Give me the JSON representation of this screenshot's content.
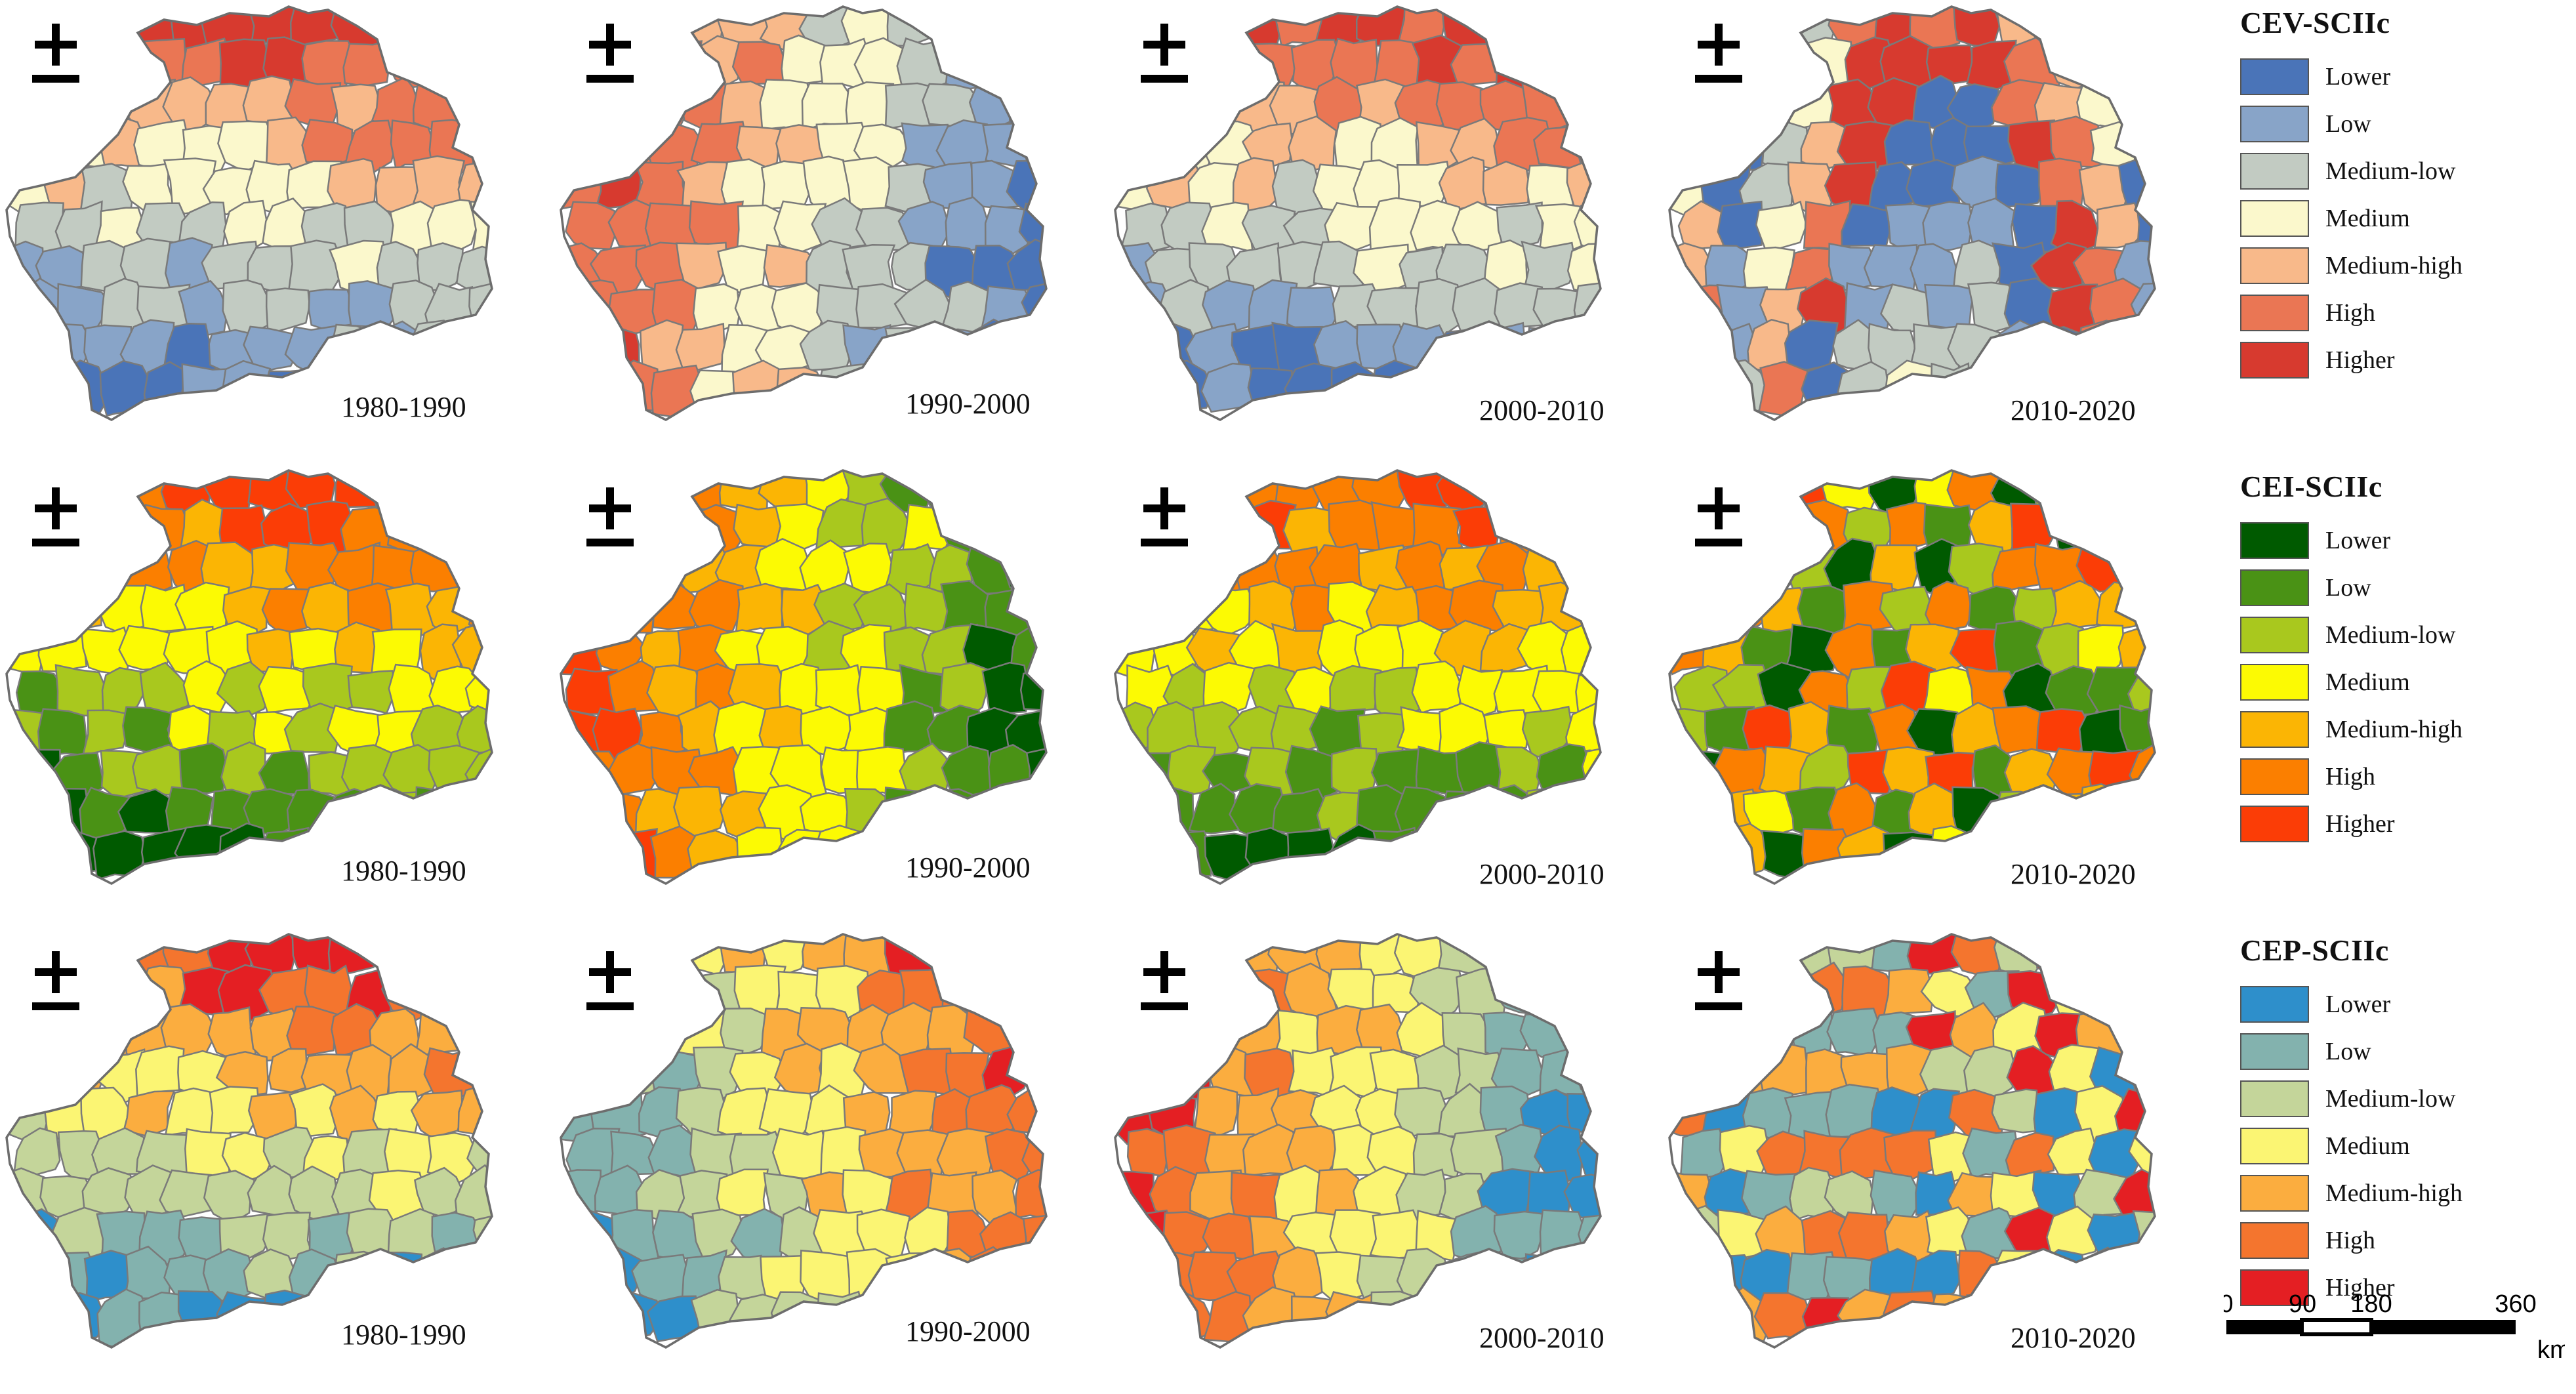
{
  "classes": [
    "Lower",
    "Low",
    "Medium-low",
    "Medium",
    "Medium-high",
    "High",
    "Higher"
  ],
  "periods": [
    "1980-1990",
    "1990-2000",
    "2000-2010",
    "2010-2020"
  ],
  "rows": [
    {
      "legend_title": "CEV-SCIIc",
      "palette": [
        "#4a74b8",
        "#88a4c8",
        "#c2cbc2",
        "#fbf8cc",
        "#f8b98a",
        "#ea7654",
        "#d73a2f"
      ],
      "maps": [
        {
          "period": "1980-1990",
          "pattern": "south-to-north"
        },
        {
          "period": "1990-2000",
          "pattern": "east-to-west"
        },
        {
          "period": "2000-2010",
          "pattern": "south-to-north"
        },
        {
          "period": "2010-2020",
          "pattern": "mixed"
        }
      ]
    },
    {
      "legend_title": "CEI-SCIIc",
      "palette": [
        "#005a00",
        "#4a9215",
        "#a9c81e",
        "#fcfa03",
        "#fbb504",
        "#fb7f00",
        "#fb3d06"
      ],
      "maps": [
        {
          "period": "1980-1990",
          "pattern": "south-to-north"
        },
        {
          "period": "1990-2000",
          "pattern": "east-to-west"
        },
        {
          "period": "2000-2010",
          "pattern": "south-to-north"
        },
        {
          "period": "2010-2020",
          "pattern": "mixed"
        }
      ]
    },
    {
      "legend_title": "CEP-SCIIc",
      "palette": [
        "#2e8fcb",
        "#83b2ae",
        "#c4d59a",
        "#fbf573",
        "#fbad3f",
        "#f4752e",
        "#e41f23"
      ],
      "maps": [
        {
          "period": "1980-1990",
          "pattern": "south-to-north"
        },
        {
          "period": "1990-2000",
          "pattern": "west-to-east"
        },
        {
          "period": "2000-2010",
          "pattern": "east-to-west"
        },
        {
          "period": "2010-2020",
          "pattern": "mixed"
        }
      ]
    }
  ],
  "scale": {
    "ticks": [
      "0",
      "90",
      "180",
      "360"
    ],
    "unit": "km"
  }
}
